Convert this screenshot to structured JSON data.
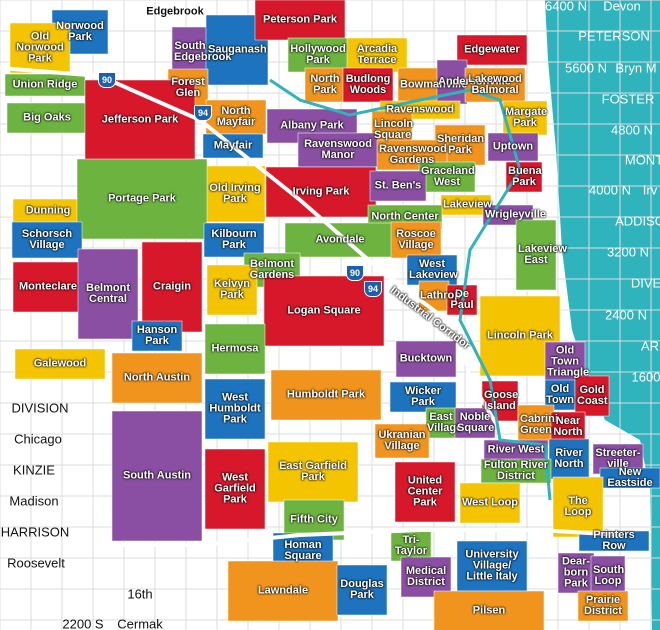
{
  "neighborhoods": [
    "Edgebrook",
    "Norwood Park",
    "Old Norwood Park",
    "Union Ridge",
    "South Edgebrook",
    "Sauganash",
    "Peterson Park",
    "Hollywood Park",
    "Arcadia Terrace",
    "Edgewater",
    "Forest Glen",
    "North Park",
    "Budlong Woods",
    "Bowmanville",
    "Andersonville",
    "Lakewood Balmoral",
    "Big Oaks",
    "Jefferson Park",
    "North Mayfair",
    "Albany Park",
    "Ravenswood",
    "Lincoln Square",
    "Sheridan Park",
    "Margate Park",
    "Mayfair",
    "Ravenswood Manor",
    "Ravenswood Gardens",
    "Uptown",
    "Graceland West",
    "Buena Park",
    "Old Irving Park",
    "Irving Park",
    "St. Ben's",
    "Dunning",
    "Portage Park",
    "Lakeview",
    "Wrigleyville",
    "North Center",
    "Schorsch Village",
    "Kilbourn Park",
    "Avondale",
    "Roscoe Village",
    "Lakeview East",
    "Belmont Gardens",
    "West Lakeview",
    "Monteclare",
    "Belmont Central",
    "Craigin",
    "Kelvyn Park",
    "Logan Square",
    "Lathrop",
    "De Paul",
    "Lincoln Park",
    "Hanson Park",
    "Hermosa",
    "Old Town Triangle",
    "Galewood",
    "North Austin",
    "Bucktown",
    "Old Town",
    "Gold Coast",
    "Humboldt Park",
    "West Humboldt Park",
    "Wicker Park",
    "Goose Island",
    "East Village",
    "Noble Square",
    "Cabrini Green",
    "Near North",
    "Ukranian Village",
    "River West",
    "River North",
    "Streeter-ville",
    "New Eastside",
    "South Austin",
    "West Garfield Park",
    "East Garfield Park",
    "Fulton River District",
    "United Center Park",
    "West Loop",
    "The Loop",
    "Fifth City",
    "Homan Square",
    "Tri-Taylor",
    "University Village/ Little Italy",
    "Printers Row",
    "Medical District",
    "Dear-born Park",
    "South Loop",
    "Lawndale",
    "Douglas Park",
    "Prairie District",
    "Pilsen"
  ],
  "streets": [
    "6400 N",
    "Devon",
    "PETERSON",
    "5600 N",
    "Bryn M",
    "FOSTER",
    "4800 N",
    "MONT",
    "4000 N",
    "Irv",
    "ADDISO",
    "3200 N",
    "DIVE",
    "2400 N",
    "AR",
    "1600",
    "DIVISION",
    "Chicago",
    "KINZIE",
    "Madison",
    "HARRISON",
    "Roosevelt",
    "16th",
    "2200 S",
    "Cermak"
  ],
  "highways": [
    "90",
    "94",
    "90",
    "94"
  ],
  "corridor": "Industrial Corridor"
}
